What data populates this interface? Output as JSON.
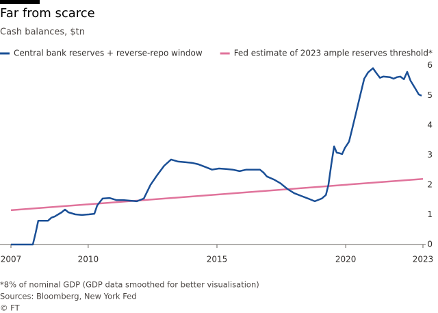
{
  "chart_data": {
    "type": "line",
    "title": "Far from scarce",
    "subtitle": "Cash balances, $tn",
    "xlim": [
      2007,
      2023
    ],
    "xticks": [
      2007,
      2010,
      2015,
      2020,
      2023
    ],
    "ylim": [
      0,
      6.2
    ],
    "yticks": [
      0,
      1,
      2,
      3,
      4,
      5,
      6
    ],
    "y_axis_side": "right",
    "grid": false,
    "series": [
      {
        "name": "Central bank reserves + reverse-repo window",
        "color": "#1a4f96",
        "x": [
          2007.0,
          2007.85,
          2007.96,
          2008.06,
          2008.17,
          2008.44,
          2008.57,
          2008.7,
          2008.97,
          2009.1,
          2009.23,
          2009.5,
          2009.76,
          2010.03,
          2010.24,
          2010.35,
          2010.56,
          2010.83,
          2011.09,
          2011.36,
          2011.62,
          2011.89,
          2012.16,
          2012.42,
          2012.69,
          2012.95,
          2013.22,
          2013.49,
          2013.75,
          2014.02,
          2014.28,
          2014.55,
          2014.81,
          2015.08,
          2015.35,
          2015.61,
          2015.88,
          2016.14,
          2016.41,
          2016.67,
          2016.81,
          2016.94,
          2017.21,
          2017.47,
          2017.74,
          2018.0,
          2018.27,
          2018.54,
          2018.8,
          2019.07,
          2019.23,
          2019.33,
          2019.44,
          2019.55,
          2019.65,
          2019.76,
          2019.86,
          2019.97,
          2020.13,
          2020.24,
          2020.4,
          2020.56,
          2020.72,
          2020.87,
          2021.06,
          2021.19,
          2021.33,
          2021.46,
          2021.72,
          2021.86,
          2021.99,
          2022.12,
          2022.26,
          2022.39,
          2022.52,
          2022.68,
          2022.84,
          2022.95
        ],
        "values": [
          0,
          0,
          0.39,
          0.8,
          0.8,
          0.8,
          0.9,
          0.94,
          1.08,
          1.17,
          1.08,
          1.01,
          0.99,
          1.01,
          1.03,
          1.31,
          1.54,
          1.56,
          1.49,
          1.49,
          1.47,
          1.45,
          1.54,
          2.0,
          2.34,
          2.64,
          2.85,
          2.78,
          2.76,
          2.74,
          2.69,
          2.6,
          2.51,
          2.55,
          2.53,
          2.51,
          2.46,
          2.51,
          2.51,
          2.51,
          2.41,
          2.28,
          2.18,
          2.05,
          1.86,
          1.72,
          1.63,
          1.54,
          1.45,
          1.54,
          1.66,
          2.0,
          2.69,
          3.29,
          3.08,
          3.06,
          3.03,
          3.24,
          3.45,
          3.84,
          4.41,
          4.99,
          5.56,
          5.77,
          5.91,
          5.75,
          5.59,
          5.63,
          5.61,
          5.56,
          5.61,
          5.63,
          5.54,
          5.79,
          5.49,
          5.26,
          5.03,
          4.99
        ]
      },
      {
        "name": "Fed estimate of 2023 ample reserves threshold*",
        "color": "#e0739b",
        "x": [
          2007,
          2023
        ],
        "values": [
          1.15,
          2.2
        ]
      }
    ],
    "footnote": "*8% of nominal GDP (GDP data smoothed for better visualisation)",
    "source": "Sources: Bloomberg, New York Fed",
    "credit": "© FT"
  }
}
